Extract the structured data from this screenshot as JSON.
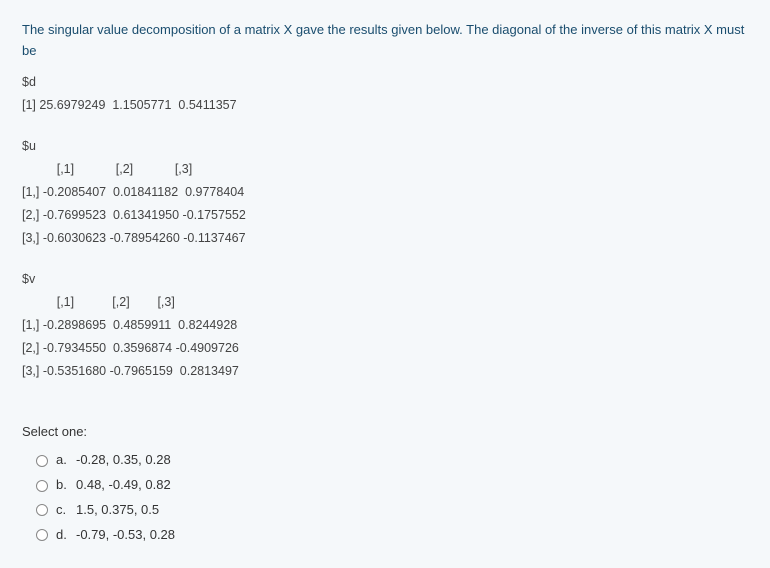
{
  "question": {
    "intro": "The singular value decomposition of a matrix  X gave  the results given below. The diagonal of the inverse of this matrix X must be",
    "d_label": "$d",
    "d_line": "[1] 25.6979249  1.1505771  0.5411357",
    "u_label": "$u",
    "u_header": "          [,1]            [,2]            [,3]",
    "u_row1": "[1,] -0.2085407  0.01841182  0.9778404",
    "u_row2": "[2,] -0.7699523  0.61341950 -0.1757552",
    "u_row3": "[3,] -0.6030623 -0.78954260 -0.1137467",
    "v_label": "$v",
    "v_header": "          [,1]           [,2]        [,3]",
    "v_row1": "[1,] -0.2898695  0.4859911  0.8244928",
    "v_row2": "[2,] -0.7934550  0.3596874 -0.4909726",
    "v_row3": "[3,] -0.5351680 -0.7965159  0.2813497"
  },
  "select_label": "Select one:",
  "options": {
    "a": {
      "letter": "a.",
      "text": "-0.28, 0.35, 0.28"
    },
    "b": {
      "letter": "b.",
      "text": "0.48, -0.49, 0.82"
    },
    "c": {
      "letter": "c.",
      "text": "1.5, 0.375, 0.5"
    },
    "d": {
      "letter": "d.",
      "text": "-0.79, -0.53, 0.28"
    }
  },
  "colors": {
    "text_primary": "#333333",
    "text_intro": "#1a4d6e",
    "background": "#f5f8fa",
    "radio_border": "#888888"
  }
}
